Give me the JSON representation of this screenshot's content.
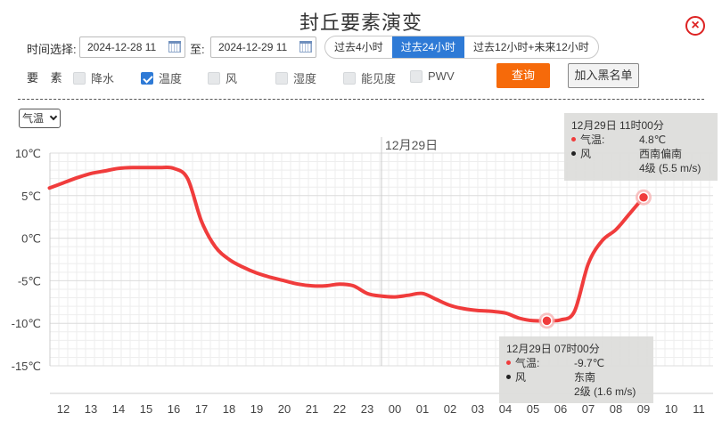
{
  "header": {
    "title": "封丘要素演变",
    "close_glyph": "×"
  },
  "filter": {
    "time_label": "时间选择:",
    "start": "2024-12-28 11",
    "to_label": "至:",
    "end": "2024-12-29 11",
    "ranges": [
      {
        "label": "过去4小时",
        "active": false
      },
      {
        "label": "过去24小时",
        "active": true
      },
      {
        "label": "过去12小时+未来12小时",
        "active": false
      }
    ]
  },
  "elements": {
    "label": "要 素",
    "items": [
      {
        "label": "降水",
        "checked": false
      },
      {
        "label": "温度",
        "checked": true
      },
      {
        "label": "风",
        "checked": false
      },
      {
        "label": "湿度",
        "checked": false
      },
      {
        "label": "能见度",
        "checked": false
      },
      {
        "label": "PWV",
        "checked": false
      }
    ],
    "query_label": "查询",
    "blacklist_label": "加入黑名单"
  },
  "variable_select": {
    "value": "气温"
  },
  "colors": {
    "line": "#f03c3c",
    "accent": "#2e7ad6",
    "query": "#f66a0a"
  },
  "chart_data": {
    "type": "line",
    "date_marker": "12月29日",
    "x": [
      "12",
      "13",
      "14",
      "15",
      "16",
      "17",
      "18",
      "19",
      "20",
      "21",
      "22",
      "23",
      "00",
      "01",
      "02",
      "03",
      "04",
      "05",
      "06",
      "07",
      "08",
      "09",
      "10",
      "11"
    ],
    "yticks": [
      "10℃",
      "5℃",
      "0℃",
      "-5℃",
      "-10℃",
      "-15℃"
    ],
    "ylim": [
      -15,
      10
    ],
    "series": [
      {
        "points": [
          [
            11.5,
            5.9
          ],
          [
            12.0,
            6.5
          ],
          [
            12.5,
            7.1
          ],
          [
            13.0,
            7.6
          ],
          [
            13.5,
            7.9
          ],
          [
            14.0,
            8.2
          ],
          [
            14.5,
            8.3
          ],
          [
            15.0,
            8.3
          ],
          [
            15.5,
            8.3
          ],
          [
            16.0,
            8.2
          ],
          [
            16.5,
            7.0
          ],
          [
            17.0,
            2.0
          ],
          [
            17.5,
            -1.0
          ],
          [
            18.0,
            -2.5
          ],
          [
            18.5,
            -3.4
          ],
          [
            19.0,
            -4.1
          ],
          [
            19.5,
            -4.6
          ],
          [
            20.0,
            -5.0
          ],
          [
            20.5,
            -5.4
          ],
          [
            21.0,
            -5.6
          ],
          [
            21.5,
            -5.6
          ],
          [
            22.0,
            -5.4
          ],
          [
            22.5,
            -5.6
          ],
          [
            23.0,
            -6.5
          ],
          [
            23.5,
            -6.8
          ],
          [
            24.0,
            -6.9
          ],
          [
            24.5,
            -6.7
          ],
          [
            25.0,
            -6.5
          ],
          [
            25.5,
            -7.2
          ],
          [
            26.0,
            -7.9
          ],
          [
            26.5,
            -8.3
          ],
          [
            27.0,
            -8.5
          ],
          [
            27.5,
            -8.6
          ],
          [
            28.0,
            -8.8
          ],
          [
            28.5,
            -9.4
          ],
          [
            29.0,
            -9.7
          ],
          [
            29.5,
            -9.7
          ],
          [
            30.0,
            -9.6
          ],
          [
            30.5,
            -8.6
          ],
          [
            31.0,
            -3.0
          ],
          [
            31.5,
            -0.3
          ],
          [
            32.0,
            1.0
          ],
          [
            32.5,
            2.9
          ],
          [
            33.0,
            4.8
          ]
        ]
      }
    ],
    "highlights": [
      {
        "time": "12月29日 07时00分",
        "temp_label": "气温:",
        "temp": "-9.7℃",
        "wind_label": "风",
        "wind_dir": "东南",
        "wind_level": "2级 (1.6 m/s)",
        "x": 29.5,
        "y": -9.7
      },
      {
        "time": "12月29日 11时00分",
        "temp_label": "气温:",
        "temp": "4.8℃",
        "wind_label": "风",
        "wind_dir": "西南偏南",
        "wind_level": "4级 (5.5 m/s)",
        "x": 33.0,
        "y": 4.8
      }
    ]
  }
}
